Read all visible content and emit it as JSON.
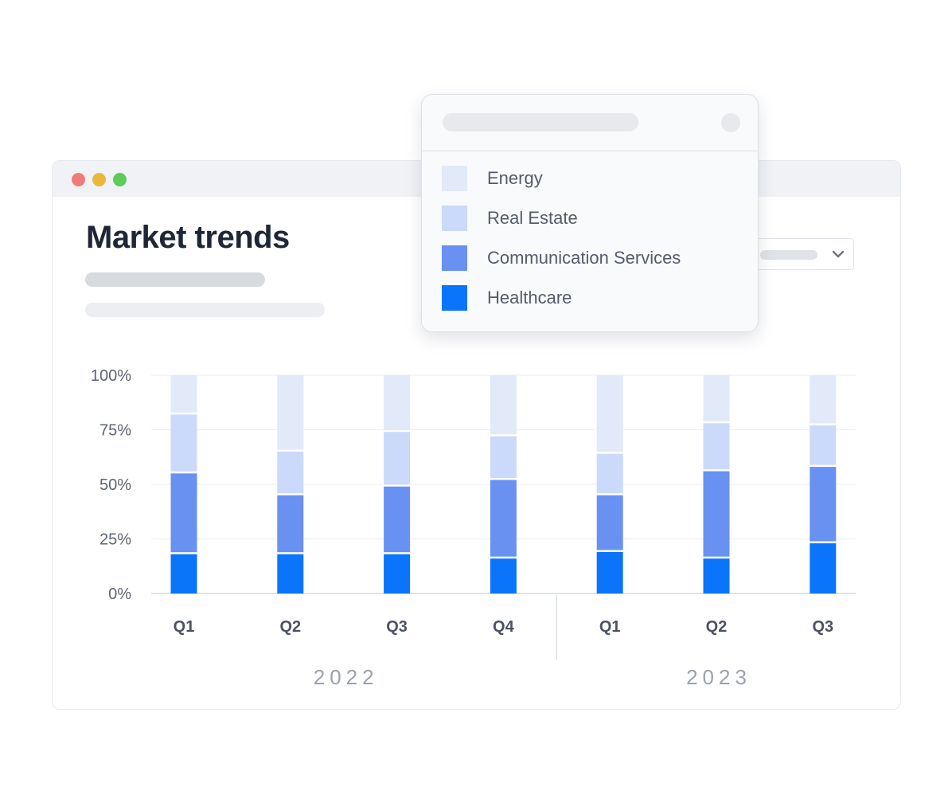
{
  "page": {
    "title": "Market trends"
  },
  "colors": {
    "energy": "#e2eaf9",
    "real_estate": "#cbdafa",
    "communication_services": "#6991f2",
    "healthcare": "#0a74fa"
  },
  "legend": {
    "items": [
      {
        "label": "Energy",
        "color": "#e2eaf9"
      },
      {
        "label": "Real Estate",
        "color": "#cbdafa"
      },
      {
        "label": "Communication Services",
        "color": "#6991f2"
      },
      {
        "label": "Healthcare",
        "color": "#0a74fa"
      }
    ]
  },
  "chart_data": {
    "type": "bar",
    "stacked": true,
    "categories": [
      "Q1",
      "Q2",
      "Q3",
      "Q4",
      "Q1",
      "Q2",
      "Q3"
    ],
    "groups": [
      {
        "label": "2022",
        "categories": [
          "Q1",
          "Q2",
          "Q3",
          "Q4"
        ]
      },
      {
        "label": "2023",
        "categories": [
          "Q1",
          "Q2",
          "Q3"
        ]
      }
    ],
    "series": [
      {
        "name": "Healthcare",
        "values": [
          18,
          18,
          18,
          16,
          19,
          16,
          23
        ]
      },
      {
        "name": "Communication Services",
        "values": [
          37,
          27,
          31,
          36,
          26,
          40,
          35
        ]
      },
      {
        "name": "Real Estate",
        "values": [
          27,
          20,
          25,
          20,
          19,
          22,
          19
        ]
      },
      {
        "name": "Energy",
        "values": [
          18,
          35,
          26,
          28,
          36,
          22,
          23
        ]
      }
    ],
    "yticks": [
      "0%",
      "25%",
      "50%",
      "75%",
      "100%"
    ],
    "ylim": [
      0,
      100
    ],
    "grid": true,
    "legend": "popup-top"
  }
}
